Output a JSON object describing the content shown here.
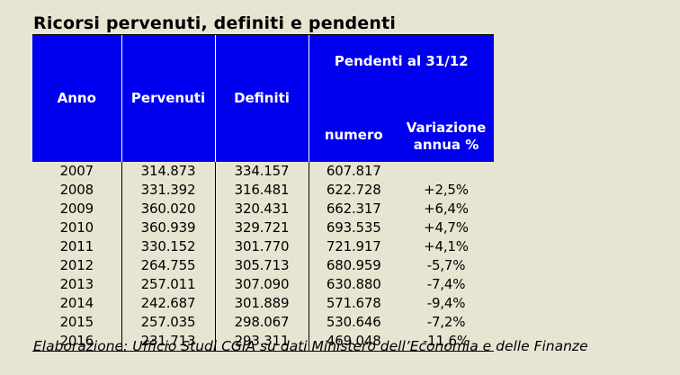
{
  "title": "Ricorsi pervenuti, definiti e pendenti",
  "source": "Elaborazione: Ufficio Studi CGIA su dati Ministero dell’Economia e delle Finanze",
  "header": {
    "anno": "Anno",
    "pervenuti": "Pervenuti",
    "definiti": "Definiti",
    "pendenti": "Pendenti al 31/12",
    "numero": "numero",
    "variazione_line1": "Variazione",
    "variazione_line2": "annua %"
  },
  "colors": {
    "header_bg": "#0000ee",
    "header_text": "#ffffff",
    "page_bg": "#e8e4d2"
  },
  "chart_data": {
    "type": "table",
    "title": "Ricorsi pervenuti, definiti e pendenti",
    "columns": [
      "Anno",
      "Pervenuti",
      "Definiti",
      "Pendenti al 31/12 - numero",
      "Pendenti al 31/12 - Variazione annua %"
    ],
    "rows": [
      [
        "2007",
        "314.873",
        "334.157",
        "607.817",
        ""
      ],
      [
        "2008",
        "331.392",
        "316.481",
        "622.728",
        "+2,5%"
      ],
      [
        "2009",
        "360.020",
        "320.431",
        "662.317",
        "+6,4%"
      ],
      [
        "2010",
        "360.939",
        "329.721",
        "693.535",
        "+4,7%"
      ],
      [
        "2011",
        "330.152",
        "301.770",
        "721.917",
        "+4,1%"
      ],
      [
        "2012",
        "264.755",
        "305.713",
        "680.959",
        "-5,7%"
      ],
      [
        "2013",
        "257.011",
        "307.090",
        "630.880",
        "-7,4%"
      ],
      [
        "2014",
        "242.687",
        "301.889",
        "571.678",
        "-9,4%"
      ],
      [
        "2015",
        "257.035",
        "298.067",
        "530.646",
        "-7,2%"
      ],
      [
        "2016",
        "231.713",
        "293.311",
        "469.048",
        "-11,6%"
      ]
    ]
  }
}
